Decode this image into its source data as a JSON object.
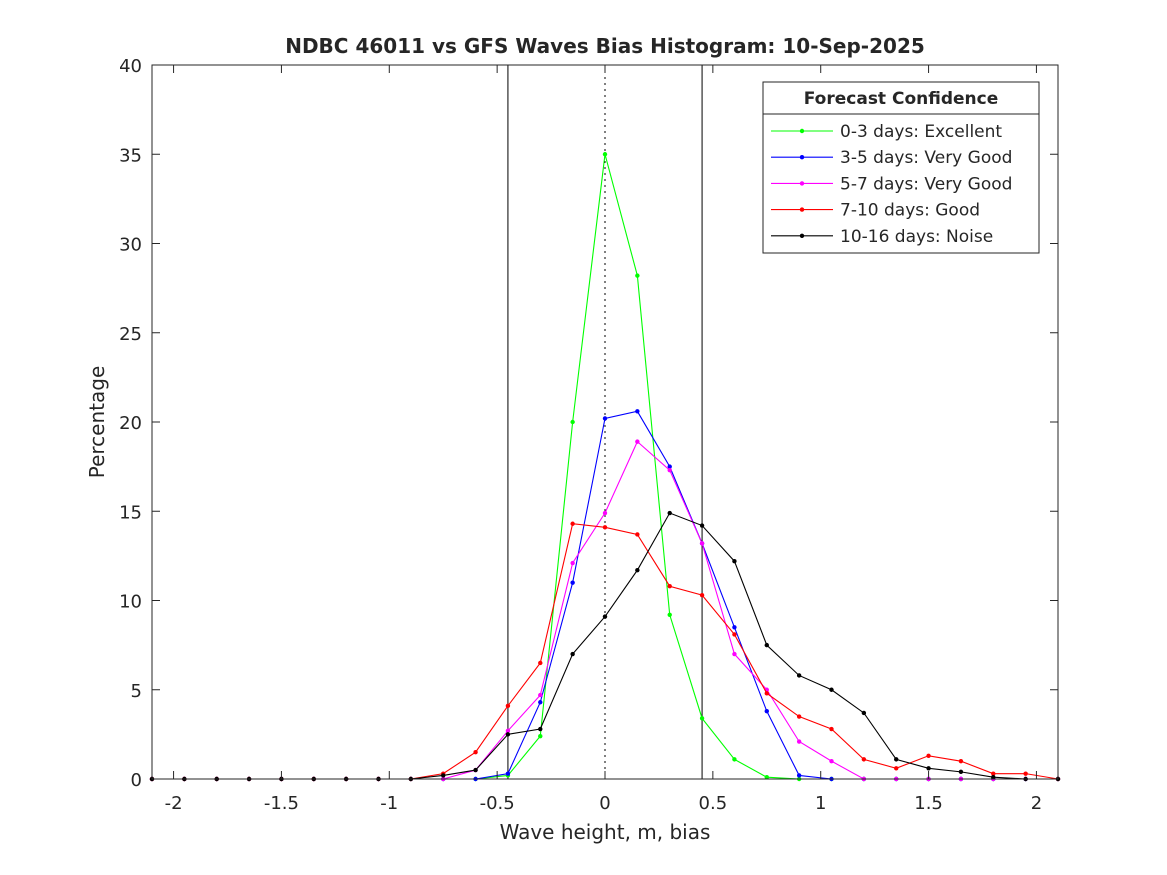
{
  "chart_data": {
    "type": "line",
    "title": "NDBC 46011 vs GFS Waves Bias Histogram: 10-Sep-2025",
    "xlabel": "Wave height, m, bias",
    "ylabel": "Percentage",
    "xlim": [
      -2.1,
      2.1
    ],
    "ylim": [
      0,
      40
    ],
    "xticks": [
      -2,
      -1.5,
      -1,
      -0.5,
      0,
      0.5,
      1,
      1.5,
      2
    ],
    "xtick_labels": [
      "-2",
      "-1.5",
      "-1",
      "-0.5",
      "0",
      "0.5",
      "1",
      "1.5",
      "2"
    ],
    "yticks": [
      0,
      5,
      10,
      15,
      20,
      25,
      30,
      35,
      40
    ],
    "ytick_labels": [
      "0",
      "5",
      "10",
      "15",
      "20",
      "25",
      "30",
      "35",
      "40"
    ],
    "grid": false,
    "legend_title": "Forecast Confidence",
    "legend_position": "top-right",
    "reference_lines": [
      {
        "x": -0.45,
        "style": "solid"
      },
      {
        "x": 0,
        "style": "dotted"
      },
      {
        "x": 0.45,
        "style": "solid"
      }
    ],
    "x": [
      -2.1,
      -1.95,
      -1.8,
      -1.65,
      -1.5,
      -1.35,
      -1.2,
      -1.05,
      -0.9,
      -0.75,
      -0.6,
      -0.45,
      -0.3,
      -0.15,
      0,
      0.15,
      0.3,
      0.45,
      0.6,
      0.75,
      0.9,
      1.05,
      1.2,
      1.35,
      1.5,
      1.65,
      1.8,
      1.95,
      2.1
    ],
    "series": [
      {
        "name": "0-3 days: Excellent",
        "color": "#00ff00",
        "values": [
          0,
          0,
          0,
          0,
          0,
          0,
          0,
          0,
          0,
          0,
          0,
          0.2,
          2.4,
          20.0,
          35.0,
          28.2,
          9.2,
          3.4,
          1.1,
          0.1,
          0,
          0,
          0,
          0,
          0,
          0,
          0,
          0,
          0
        ]
      },
      {
        "name": "3-5 days: Very Good",
        "color": "#0000ff",
        "values": [
          0,
          0,
          0,
          0,
          0,
          0,
          0,
          0,
          0,
          0,
          0,
          0.3,
          4.3,
          11.0,
          20.2,
          20.6,
          17.5,
          13.2,
          8.5,
          3.8,
          0.2,
          0,
          0,
          0,
          0,
          0,
          0,
          0,
          0
        ]
      },
      {
        "name": "5-7 days: Very Good",
        "color": "#ff00ff",
        "values": [
          0,
          0,
          0,
          0,
          0,
          0,
          0,
          0,
          0,
          0,
          0.5,
          2.7,
          4.7,
          12.1,
          14.9,
          18.9,
          17.3,
          13.2,
          7.0,
          5.0,
          2.1,
          1.0,
          0,
          0,
          0,
          0,
          0,
          0,
          0
        ]
      },
      {
        "name": "7-10 days: Good",
        "color": "#ff0000",
        "values": [
          0,
          0,
          0,
          0,
          0,
          0,
          0,
          0,
          0,
          0.3,
          1.5,
          4.1,
          6.5,
          14.3,
          14.1,
          13.7,
          10.8,
          10.3,
          8.1,
          4.8,
          3.5,
          2.8,
          1.1,
          0.6,
          1.3,
          1.0,
          0.3,
          0.3,
          0
        ]
      },
      {
        "name": "10-16 days: Noise",
        "color": "#000000",
        "values": [
          0,
          0,
          0,
          0,
          0,
          0,
          0,
          0,
          0,
          0.2,
          0.5,
          2.5,
          2.8,
          7.0,
          9.1,
          11.7,
          14.9,
          14.2,
          12.2,
          7.5,
          5.8,
          5.0,
          3.7,
          1.1,
          0.6,
          0.4,
          0.1,
          0,
          0
        ]
      }
    ]
  }
}
